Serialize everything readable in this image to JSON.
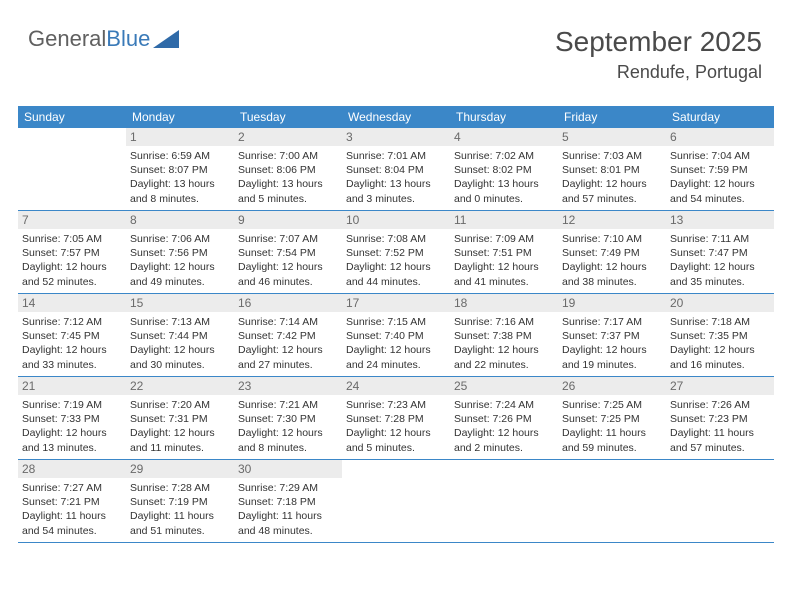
{
  "logo": {
    "text1": "General",
    "text2": "Blue"
  },
  "header": {
    "month": "September 2025",
    "location": "Rendufe, Portugal"
  },
  "colors": {
    "header_bg": "#3b87c8",
    "header_text": "#ffffff",
    "daynum_bg": "#ececec",
    "daynum_text": "#6a6a6a",
    "border": "#3b87c8",
    "logo_gray": "#606060",
    "logo_blue": "#3a7ab8"
  },
  "day_names": [
    "Sunday",
    "Monday",
    "Tuesday",
    "Wednesday",
    "Thursday",
    "Friday",
    "Saturday"
  ],
  "weeks": [
    [
      {
        "num": "",
        "sunrise": "",
        "sunset": "",
        "daylight": ""
      },
      {
        "num": "1",
        "sunrise": "Sunrise: 6:59 AM",
        "sunset": "Sunset: 8:07 PM",
        "daylight": "Daylight: 13 hours and 8 minutes."
      },
      {
        "num": "2",
        "sunrise": "Sunrise: 7:00 AM",
        "sunset": "Sunset: 8:06 PM",
        "daylight": "Daylight: 13 hours and 5 minutes."
      },
      {
        "num": "3",
        "sunrise": "Sunrise: 7:01 AM",
        "sunset": "Sunset: 8:04 PM",
        "daylight": "Daylight: 13 hours and 3 minutes."
      },
      {
        "num": "4",
        "sunrise": "Sunrise: 7:02 AM",
        "sunset": "Sunset: 8:02 PM",
        "daylight": "Daylight: 13 hours and 0 minutes."
      },
      {
        "num": "5",
        "sunrise": "Sunrise: 7:03 AM",
        "sunset": "Sunset: 8:01 PM",
        "daylight": "Daylight: 12 hours and 57 minutes."
      },
      {
        "num": "6",
        "sunrise": "Sunrise: 7:04 AM",
        "sunset": "Sunset: 7:59 PM",
        "daylight": "Daylight: 12 hours and 54 minutes."
      }
    ],
    [
      {
        "num": "7",
        "sunrise": "Sunrise: 7:05 AM",
        "sunset": "Sunset: 7:57 PM",
        "daylight": "Daylight: 12 hours and 52 minutes."
      },
      {
        "num": "8",
        "sunrise": "Sunrise: 7:06 AM",
        "sunset": "Sunset: 7:56 PM",
        "daylight": "Daylight: 12 hours and 49 minutes."
      },
      {
        "num": "9",
        "sunrise": "Sunrise: 7:07 AM",
        "sunset": "Sunset: 7:54 PM",
        "daylight": "Daylight: 12 hours and 46 minutes."
      },
      {
        "num": "10",
        "sunrise": "Sunrise: 7:08 AM",
        "sunset": "Sunset: 7:52 PM",
        "daylight": "Daylight: 12 hours and 44 minutes."
      },
      {
        "num": "11",
        "sunrise": "Sunrise: 7:09 AM",
        "sunset": "Sunset: 7:51 PM",
        "daylight": "Daylight: 12 hours and 41 minutes."
      },
      {
        "num": "12",
        "sunrise": "Sunrise: 7:10 AM",
        "sunset": "Sunset: 7:49 PM",
        "daylight": "Daylight: 12 hours and 38 minutes."
      },
      {
        "num": "13",
        "sunrise": "Sunrise: 7:11 AM",
        "sunset": "Sunset: 7:47 PM",
        "daylight": "Daylight: 12 hours and 35 minutes."
      }
    ],
    [
      {
        "num": "14",
        "sunrise": "Sunrise: 7:12 AM",
        "sunset": "Sunset: 7:45 PM",
        "daylight": "Daylight: 12 hours and 33 minutes."
      },
      {
        "num": "15",
        "sunrise": "Sunrise: 7:13 AM",
        "sunset": "Sunset: 7:44 PM",
        "daylight": "Daylight: 12 hours and 30 minutes."
      },
      {
        "num": "16",
        "sunrise": "Sunrise: 7:14 AM",
        "sunset": "Sunset: 7:42 PM",
        "daylight": "Daylight: 12 hours and 27 minutes."
      },
      {
        "num": "17",
        "sunrise": "Sunrise: 7:15 AM",
        "sunset": "Sunset: 7:40 PM",
        "daylight": "Daylight: 12 hours and 24 minutes."
      },
      {
        "num": "18",
        "sunrise": "Sunrise: 7:16 AM",
        "sunset": "Sunset: 7:38 PM",
        "daylight": "Daylight: 12 hours and 22 minutes."
      },
      {
        "num": "19",
        "sunrise": "Sunrise: 7:17 AM",
        "sunset": "Sunset: 7:37 PM",
        "daylight": "Daylight: 12 hours and 19 minutes."
      },
      {
        "num": "20",
        "sunrise": "Sunrise: 7:18 AM",
        "sunset": "Sunset: 7:35 PM",
        "daylight": "Daylight: 12 hours and 16 minutes."
      }
    ],
    [
      {
        "num": "21",
        "sunrise": "Sunrise: 7:19 AM",
        "sunset": "Sunset: 7:33 PM",
        "daylight": "Daylight: 12 hours and 13 minutes."
      },
      {
        "num": "22",
        "sunrise": "Sunrise: 7:20 AM",
        "sunset": "Sunset: 7:31 PM",
        "daylight": "Daylight: 12 hours and 11 minutes."
      },
      {
        "num": "23",
        "sunrise": "Sunrise: 7:21 AM",
        "sunset": "Sunset: 7:30 PM",
        "daylight": "Daylight: 12 hours and 8 minutes."
      },
      {
        "num": "24",
        "sunrise": "Sunrise: 7:23 AM",
        "sunset": "Sunset: 7:28 PM",
        "daylight": "Daylight: 12 hours and 5 minutes."
      },
      {
        "num": "25",
        "sunrise": "Sunrise: 7:24 AM",
        "sunset": "Sunset: 7:26 PM",
        "daylight": "Daylight: 12 hours and 2 minutes."
      },
      {
        "num": "26",
        "sunrise": "Sunrise: 7:25 AM",
        "sunset": "Sunset: 7:25 PM",
        "daylight": "Daylight: 11 hours and 59 minutes."
      },
      {
        "num": "27",
        "sunrise": "Sunrise: 7:26 AM",
        "sunset": "Sunset: 7:23 PM",
        "daylight": "Daylight: 11 hours and 57 minutes."
      }
    ],
    [
      {
        "num": "28",
        "sunrise": "Sunrise: 7:27 AM",
        "sunset": "Sunset: 7:21 PM",
        "daylight": "Daylight: 11 hours and 54 minutes."
      },
      {
        "num": "29",
        "sunrise": "Sunrise: 7:28 AM",
        "sunset": "Sunset: 7:19 PM",
        "daylight": "Daylight: 11 hours and 51 minutes."
      },
      {
        "num": "30",
        "sunrise": "Sunrise: 7:29 AM",
        "sunset": "Sunset: 7:18 PM",
        "daylight": "Daylight: 11 hours and 48 minutes."
      },
      {
        "num": "",
        "sunrise": "",
        "sunset": "",
        "daylight": ""
      },
      {
        "num": "",
        "sunrise": "",
        "sunset": "",
        "daylight": ""
      },
      {
        "num": "",
        "sunrise": "",
        "sunset": "",
        "daylight": ""
      },
      {
        "num": "",
        "sunrise": "",
        "sunset": "",
        "daylight": ""
      }
    ]
  ]
}
